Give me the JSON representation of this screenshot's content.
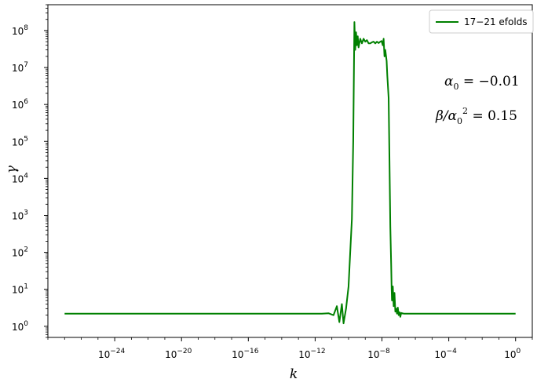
{
  "chart_data": {
    "type": "line",
    "xlabel": "k",
    "ylabel": "γ",
    "x_scale": "log",
    "y_scale": "log",
    "xlim": [
      1e-28,
      10.0
    ],
    "ylim": [
      0.5,
      500000000.0
    ],
    "grid": false,
    "legend_position": "top-right",
    "x_tick_labels": [
      {
        "exp": -24,
        "base": "10",
        "sup": "−24"
      },
      {
        "exp": -20,
        "base": "10",
        "sup": "−20"
      },
      {
        "exp": -16,
        "base": "10",
        "sup": "−16"
      },
      {
        "exp": -12,
        "base": "10",
        "sup": "−12"
      },
      {
        "exp": -8,
        "base": "10",
        "sup": "−8"
      },
      {
        "exp": -4,
        "base": "10",
        "sup": "−4"
      },
      {
        "exp": 0,
        "base": "10",
        "sup": "0"
      }
    ],
    "y_tick_labels": [
      {
        "exp": 0,
        "base": "10",
        "sup": "0"
      },
      {
        "exp": 1,
        "base": "10",
        "sup": "1"
      },
      {
        "exp": 2,
        "base": "10",
        "sup": "2"
      },
      {
        "exp": 3,
        "base": "10",
        "sup": "3"
      },
      {
        "exp": 4,
        "base": "10",
        "sup": "4"
      },
      {
        "exp": 5,
        "base": "10",
        "sup": "5"
      },
      {
        "exp": 6,
        "base": "10",
        "sup": "6"
      },
      {
        "exp": 7,
        "base": "10",
        "sup": "7"
      },
      {
        "exp": 8,
        "base": "10",
        "sup": "8"
      }
    ],
    "series": [
      {
        "name": "17−21 efolds",
        "color": "#008000",
        "points": [
          [
            -27,
            2.2
          ],
          [
            -20,
            2.2
          ],
          [
            -14,
            2.2
          ],
          [
            -11.6,
            2.2
          ],
          [
            -11.2,
            2.25
          ],
          [
            -10.9,
            2.0
          ],
          [
            -10.7,
            3.5
          ],
          [
            -10.55,
            1.3
          ],
          [
            -10.4,
            4.0
          ],
          [
            -10.3,
            1.2
          ],
          [
            -10.15,
            3.0
          ],
          [
            -10.0,
            12
          ],
          [
            -9.9,
            100
          ],
          [
            -9.8,
            800
          ],
          [
            -9.72,
            100000.0
          ],
          [
            -9.65,
            170000000.0
          ],
          [
            -9.6,
            30000000.0
          ],
          [
            -9.55,
            90000000.0
          ],
          [
            -9.5,
            40000000.0
          ],
          [
            -9.45,
            70000000.0
          ],
          [
            -9.4,
            35000000.0
          ],
          [
            -9.3,
            60000000.0
          ],
          [
            -9.2,
            45000000.0
          ],
          [
            -9.1,
            60000000.0
          ],
          [
            -9.0,
            50000000.0
          ],
          [
            -8.9,
            55000000.0
          ],
          [
            -8.8,
            45000000.0
          ],
          [
            -8.7,
            45000000.0
          ],
          [
            -8.6,
            48000000.0
          ],
          [
            -8.5,
            50000000.0
          ],
          [
            -8.4,
            45000000.0
          ],
          [
            -8.3,
            50000000.0
          ],
          [
            -8.2,
            46000000.0
          ],
          [
            -8.1,
            50000000.0
          ],
          [
            -8.02,
            52000000.0
          ],
          [
            -7.95,
            40000000.0
          ],
          [
            -7.9,
            60000000.0
          ],
          [
            -7.85,
            20000000.0
          ],
          [
            -7.8,
            30000000.0
          ],
          [
            -7.72,
            15000000.0
          ],
          [
            -7.68,
            6000000.0
          ],
          [
            -7.6,
            1500000.0
          ],
          [
            -7.55,
            30000.0
          ],
          [
            -7.5,
            500
          ],
          [
            -7.45,
            50
          ],
          [
            -7.42,
            10
          ],
          [
            -7.4,
            5
          ],
          [
            -7.35,
            12
          ],
          [
            -7.3,
            3.5
          ],
          [
            -7.25,
            8
          ],
          [
            -7.2,
            2.5
          ],
          [
            -7.15,
            3
          ],
          [
            -7.1,
            2.2
          ],
          [
            -7.05,
            3.2
          ],
          [
            -7.0,
            2.0
          ],
          [
            -6.95,
            2.4
          ],
          [
            -6.9,
            1.8
          ],
          [
            -6.85,
            2.3
          ],
          [
            -6.7,
            2.2
          ],
          [
            -5,
            2.2
          ],
          [
            -2,
            2.2
          ],
          [
            0,
            2.2
          ]
        ]
      }
    ],
    "annotations": [
      {
        "id": "alpha",
        "parts": [
          "α",
          "0",
          " = −0.01"
        ]
      },
      {
        "id": "beta",
        "parts": [
          "β/α",
          "0",
          "2",
          " = 0.15"
        ]
      }
    ]
  }
}
